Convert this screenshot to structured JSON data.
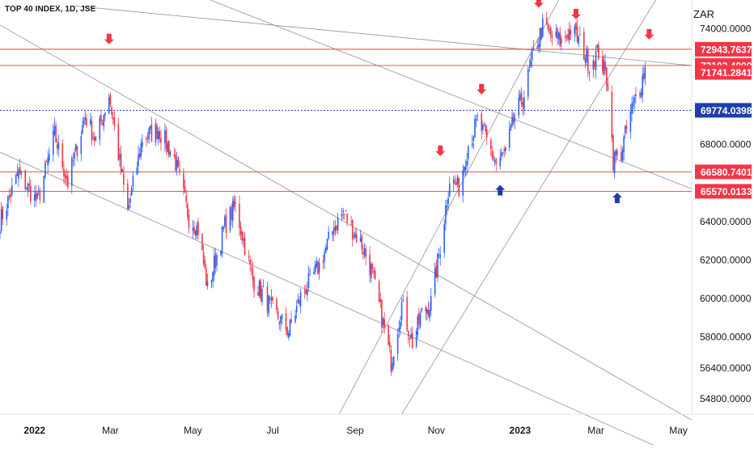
{
  "header": {
    "symbol": "TOP 40 INDEX, 1D, JSE",
    "currency": "ZAR"
  },
  "chart_data": {
    "type": "candlestick",
    "y_scale": [
      54000,
      75500
    ],
    "x_range": [
      "2021-12-08",
      "2023-05-12"
    ],
    "y_ticks": [
      {
        "value": 74000,
        "label": "74000.0000"
      },
      {
        "value": 68000,
        "label": "68000.0000"
      },
      {
        "value": 64000,
        "label": "64000.0000"
      },
      {
        "value": 62000,
        "label": "62000.0000"
      },
      {
        "value": 60000,
        "label": "60000.0000"
      },
      {
        "value": 58000,
        "label": "58000.0000"
      },
      {
        "value": 56400,
        "label": "56400.0000"
      },
      {
        "value": 54800,
        "label": "54800.0000"
      }
    ],
    "x_ticks": [
      {
        "date": "2022-01-03",
        "label": "2022",
        "bold": true
      },
      {
        "date": "2022-03-01",
        "label": "Mar",
        "bold": false
      },
      {
        "date": "2022-05-02",
        "label": "May",
        "bold": false
      },
      {
        "date": "2022-07-01",
        "label": "Jul",
        "bold": false
      },
      {
        "date": "2022-09-01",
        "label": "Sep",
        "bold": false
      },
      {
        "date": "2022-11-01",
        "label": "Nov",
        "bold": false
      },
      {
        "date": "2023-01-03",
        "label": "2023",
        "bold": true
      },
      {
        "date": "2023-03-01",
        "label": "Mar",
        "bold": false
      },
      {
        "date": "2023-05-02",
        "label": "May",
        "bold": false
      }
    ],
    "horizontal_levels": [
      {
        "value": 72943.7637,
        "label": "72943.7637",
        "color": "#f23645",
        "style": "solid"
      },
      {
        "value": 72102.4,
        "label": "72102.4000",
        "color": "#f23645",
        "style": "solid"
      },
      {
        "value": 71741.2841,
        "label": "71741.2841",
        "color": "#f23645",
        "style": "none"
      },
      {
        "value": 69774.0398,
        "label": "69774.0398",
        "color": "#1e3fa8",
        "style": "dashed"
      },
      {
        "value": 66580.7401,
        "label": "66580.7401",
        "color": "#f23645",
        "style": "solid"
      },
      {
        "value": 65570.0133,
        "label": "65570.0133",
        "color": "#f23645",
        "style": "solid"
      }
    ],
    "trendlines": [
      {
        "from": [
          "2021-12-08",
          67600
        ],
        "to": [
          "2023-05-12",
          51500
        ]
      },
      {
        "from": [
          "2021-12-08",
          74200
        ],
        "to": [
          "2023-05-12",
          53700
        ]
      },
      {
        "from": [
          "2022-02-01",
          75200
        ],
        "to": [
          "2023-05-12",
          72100
        ]
      },
      {
        "from": [
          "2022-05-15",
          75500
        ],
        "to": [
          "2023-05-12",
          65700
        ]
      },
      {
        "from": [
          "2022-08-20",
          54000
        ],
        "to": [
          "2023-02-01",
          75500
        ]
      },
      {
        "from": [
          "2022-10-06",
          54000
        ],
        "to": [
          "2023-04-15",
          75500
        ]
      }
    ],
    "markers": [
      {
        "date": "2022-02-28",
        "value": 73200,
        "direction": "down",
        "color": "#f23645"
      },
      {
        "date": "2022-11-04",
        "value": 67400,
        "direction": "down",
        "color": "#f23645"
      },
      {
        "date": "2022-12-05",
        "value": 70600,
        "direction": "down",
        "color": "#f23645"
      },
      {
        "date": "2023-01-17",
        "value": 75100,
        "direction": "down",
        "color": "#f23645"
      },
      {
        "date": "2023-02-14",
        "value": 74500,
        "direction": "down",
        "color": "#f23645"
      },
      {
        "date": "2023-04-10",
        "value": 73450,
        "direction": "down",
        "color": "#f23645"
      },
      {
        "date": "2022-12-19",
        "value": 65900,
        "direction": "up",
        "color": "#1e3fa8"
      },
      {
        "date": "2023-03-17",
        "value": 65500,
        "direction": "up",
        "color": "#1e3fa8"
      }
    ],
    "price_path": [
      [
        "2021-12-08",
        64000
      ],
      [
        "2021-12-22",
        66500
      ],
      [
        "2022-01-05",
        65000
      ],
      [
        "2022-01-18",
        68500
      ],
      [
        "2022-01-28",
        66000
      ],
      [
        "2022-02-10",
        69500
      ],
      [
        "2022-02-18",
        68200
      ],
      [
        "2022-02-28",
        70600
      ],
      [
        "2022-03-09",
        66600
      ],
      [
        "2022-03-14",
        64500
      ],
      [
        "2022-03-25",
        68300
      ],
      [
        "2022-04-06",
        68800
      ],
      [
        "2022-04-18",
        67300
      ],
      [
        "2022-04-29",
        64200
      ],
      [
        "2022-05-06",
        63600
      ],
      [
        "2022-05-13",
        60500
      ],
      [
        "2022-05-26",
        63800
      ],
      [
        "2022-06-03",
        64800
      ],
      [
        "2022-06-16",
        61000
      ],
      [
        "2022-06-24",
        60200
      ],
      [
        "2022-07-01",
        59400
      ],
      [
        "2022-07-13",
        58300
      ],
      [
        "2022-07-22",
        60100
      ],
      [
        "2022-08-05",
        61700
      ],
      [
        "2022-08-16",
        63700
      ],
      [
        "2022-08-23",
        64500
      ],
      [
        "2022-08-29",
        63700
      ],
      [
        "2022-09-06",
        62800
      ],
      [
        "2022-09-13",
        61500
      ],
      [
        "2022-09-22",
        58700
      ],
      [
        "2022-09-28",
        56700
      ],
      [
        "2022-10-06",
        59700
      ],
      [
        "2022-10-14",
        57700
      ],
      [
        "2022-10-21",
        59200
      ],
      [
        "2022-10-28",
        59800
      ],
      [
        "2022-11-04",
        62700
      ],
      [
        "2022-11-11",
        66200
      ],
      [
        "2022-11-18",
        65800
      ],
      [
        "2022-11-25",
        68000
      ],
      [
        "2022-12-02",
        69200
      ],
      [
        "2022-12-09",
        68200
      ],
      [
        "2022-12-16",
        67000
      ],
      [
        "2022-12-23",
        67600
      ],
      [
        "2022-12-30",
        69400
      ],
      [
        "2023-01-06",
        70600
      ],
      [
        "2023-01-13",
        72700
      ],
      [
        "2023-01-20",
        74100
      ],
      [
        "2023-01-27",
        73600
      ],
      [
        "2023-02-03",
        73300
      ],
      [
        "2023-02-10",
        74000
      ],
      [
        "2023-02-17",
        73300
      ],
      [
        "2023-02-24",
        72200
      ],
      [
        "2023-03-03",
        72800
      ],
      [
        "2023-03-10",
        71200
      ],
      [
        "2023-03-14",
        67200
      ],
      [
        "2023-03-20",
        67600
      ],
      [
        "2023-03-27",
        69600
      ],
      [
        "2023-04-03",
        71000
      ],
      [
        "2023-04-10",
        72600
      ]
    ]
  }
}
